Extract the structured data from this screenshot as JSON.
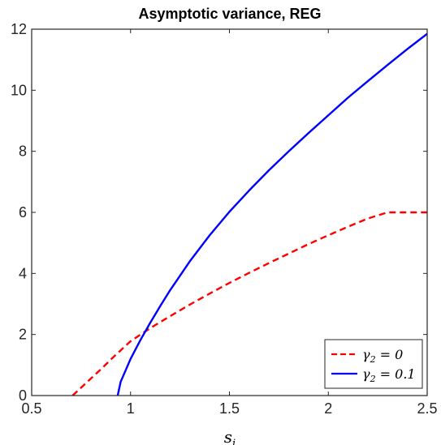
{
  "chart_data": {
    "type": "line",
    "title": "Asymptotic variance, REG",
    "xlabel": "s_i",
    "ylabel": "",
    "xlim": [
      0.5,
      2.5
    ],
    "ylim": [
      0,
      12
    ],
    "xticks": [
      0.5,
      1,
      1.5,
      2,
      2.5
    ],
    "xtick_labels": [
      "0.5",
      "1",
      "1.5",
      "2",
      "2.5"
    ],
    "yticks": [
      0,
      2,
      4,
      6,
      8,
      10,
      12
    ],
    "ytick_labels": [
      "0",
      "2",
      "4",
      "6",
      "8",
      "10",
      "12"
    ],
    "grid": false,
    "legend_position": "bottom-right",
    "series": [
      {
        "name": "γ2 = 0",
        "color": "#ff0000",
        "style": "dashed",
        "x": [
          0.707,
          0.75,
          0.8,
          0.85,
          0.9,
          0.95,
          1.0,
          1.1,
          1.2,
          1.3,
          1.4,
          1.5,
          1.6,
          1.7,
          1.8,
          1.9,
          2.0,
          2.1,
          2.2,
          2.3,
          2.4,
          2.5
        ],
        "y": [
          0.0,
          0.26,
          0.56,
          0.86,
          1.18,
          1.48,
          1.78,
          2.21,
          2.6,
          2.98,
          3.34,
          3.69,
          4.02,
          4.34,
          4.65,
          4.96,
          5.25,
          5.53,
          5.8,
          6.0,
          6.0,
          6.0
        ]
      },
      {
        "name": "γ2 = 0.1",
        "color": "#0000ff",
        "style": "solid",
        "x": [
          0.935,
          0.95,
          1.0,
          1.05,
          1.1,
          1.15,
          1.2,
          1.3,
          1.4,
          1.5,
          1.6,
          1.7,
          1.8,
          1.9,
          2.0,
          2.1,
          2.2,
          2.3,
          2.4,
          2.5
        ],
        "y": [
          0.0,
          0.45,
          1.2,
          1.82,
          2.39,
          2.93,
          3.45,
          4.4,
          5.25,
          6.02,
          6.72,
          7.38,
          8.0,
          8.6,
          9.18,
          9.76,
          10.3,
          10.83,
          11.35,
          11.85
        ]
      }
    ]
  },
  "legend": {
    "item0_sym": "γ",
    "item0_sub": "2",
    "item0_rest": " = 0",
    "item1_sym": "γ",
    "item1_sub": "2",
    "item1_rest": " = 0.1"
  },
  "xlabel_display": {
    "sym": "s",
    "sub": "i"
  }
}
